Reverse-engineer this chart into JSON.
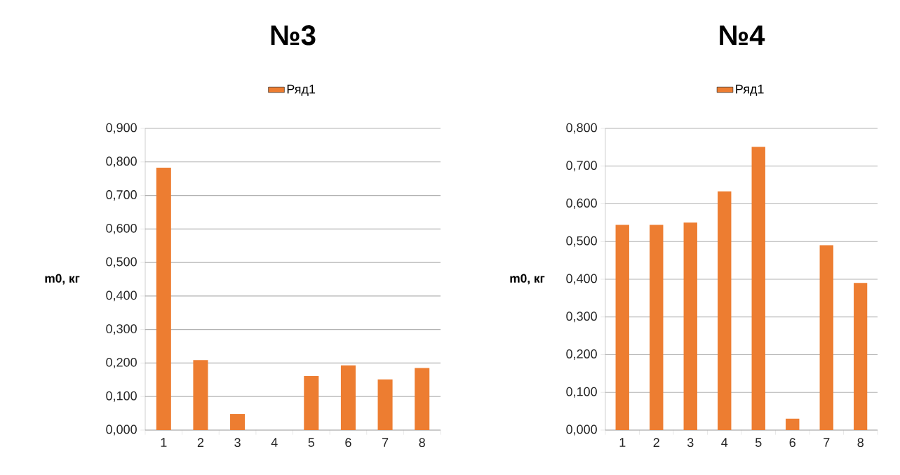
{
  "chart_data": [
    {
      "type": "bar",
      "title": "№3",
      "ylabel": "m0, кг",
      "categories": [
        "1",
        "2",
        "3",
        "4",
        "5",
        "6",
        "7",
        "8"
      ],
      "series": [
        {
          "name": "Ряд1",
          "color": "#ed7d31",
          "values": [
            0.783,
            0.209,
            0.048,
            0,
            0.161,
            0.193,
            0.151,
            0.185
          ]
        }
      ],
      "ylim": [
        0,
        0.9
      ],
      "yticks": [
        {
          "value": 0,
          "label": "0,000"
        },
        {
          "value": 0.1,
          "label": "0,100"
        },
        {
          "value": 0.2,
          "label": "0,200"
        },
        {
          "value": 0.3,
          "label": "0,300"
        },
        {
          "value": 0.4,
          "label": "0,400"
        },
        {
          "value": 0.5,
          "label": "0,500"
        },
        {
          "value": 0.6,
          "label": "0,600"
        },
        {
          "value": 0.7,
          "label": "0,700"
        },
        {
          "value": 0.8,
          "label": "0,800"
        },
        {
          "value": 0.9,
          "label": "0,900"
        }
      ],
      "grid": "y",
      "legend": "top"
    },
    {
      "type": "bar",
      "title": "№4",
      "ylabel": "m0, кг",
      "categories": [
        "1",
        "2",
        "3",
        "4",
        "5",
        "6",
        "7",
        "8"
      ],
      "series": [
        {
          "name": "Ряд1",
          "color": "#ed7d31",
          "values": [
            0.544,
            0.544,
            0.55,
            0.633,
            0.751,
            0.03,
            0.49,
            0.39
          ]
        }
      ],
      "ylim": [
        0,
        0.8
      ],
      "yticks": [
        {
          "value": 0,
          "label": "0,000"
        },
        {
          "value": 0.1,
          "label": "0,100"
        },
        {
          "value": 0.2,
          "label": "0,200"
        },
        {
          "value": 0.3,
          "label": "0,300"
        },
        {
          "value": 0.4,
          "label": "0,400"
        },
        {
          "value": 0.5,
          "label": "0,500"
        },
        {
          "value": 0.6,
          "label": "0,600"
        },
        {
          "value": 0.7,
          "label": "0,700"
        },
        {
          "value": 0.8,
          "label": "0,800"
        }
      ],
      "grid": "y",
      "legend": "top"
    }
  ]
}
